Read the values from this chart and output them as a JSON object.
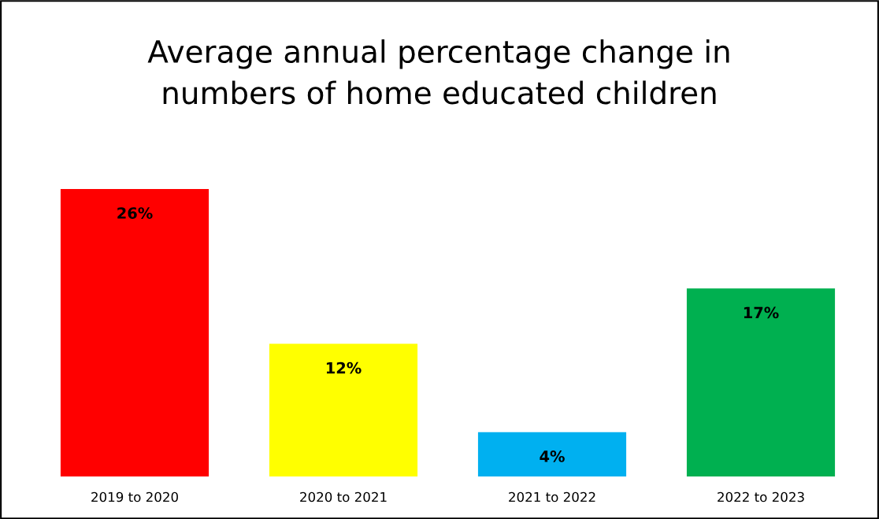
{
  "chart_data": {
    "type": "bar",
    "title": "Average annual percentage change in\nnumbers of home educated children",
    "categories": [
      "2019 to 2020",
      "2020 to 2021",
      "2021 to 2022",
      "2022 to 2023"
    ],
    "values": [
      26,
      12,
      4,
      17
    ],
    "colors": [
      "#ff0000",
      "#ffff00",
      "#00b0f0",
      "#00b050"
    ],
    "value_labels": [
      "26%",
      "12%",
      "4%",
      "17%"
    ],
    "grid": false,
    "legend": false
  }
}
